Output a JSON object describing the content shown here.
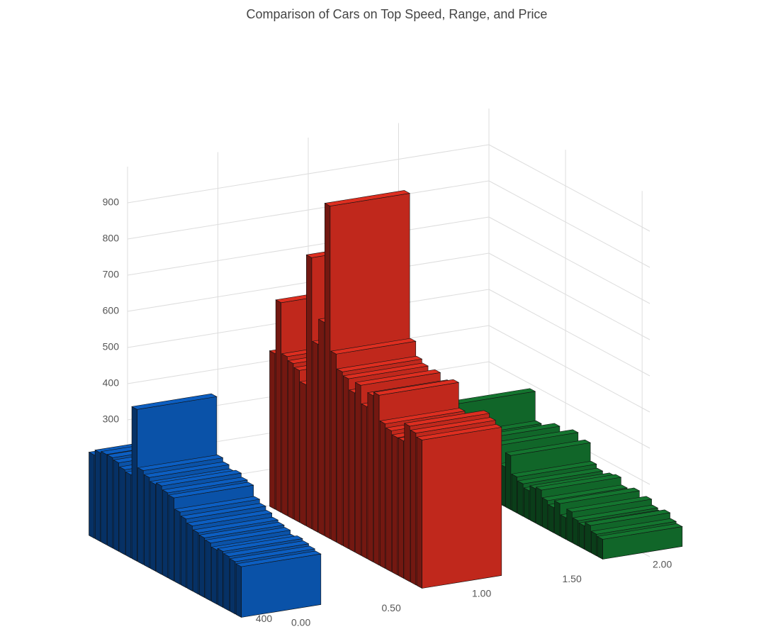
{
  "chart_data": {
    "type": "bar3d",
    "title": "Comparison of Cars on Top Speed, Range, and Price",
    "x": [
      10,
      26,
      42,
      58,
      74,
      90,
      106,
      122,
      138,
      154,
      170,
      186,
      202,
      218,
      234,
      250,
      266,
      282,
      298,
      314,
      330,
      346,
      362,
      378,
      394
    ],
    "series": [
      {
        "color": "#0a52a8",
        "values": [
          230,
          245,
          250,
          250,
          245,
          235,
          230,
          420,
          260,
          250,
          240,
          245,
          235,
          230,
          200,
          190,
          180,
          170,
          165,
          160,
          150,
          155,
          150,
          145,
          140
        ]
      },
      {
        "color": "#c0281c",
        "values": [
          430,
          580,
          440,
          430,
          420,
          390,
          750,
          520,
          590,
          920,
          520,
          480,
          470,
          440,
          470,
          420,
          460,
          470,
          400,
          390,
          380,
          380,
          430,
          420,
          410
        ]
      },
      {
        "color": "#116629",
        "values": [
          210,
          130,
          120,
          110,
          150,
          120,
          110,
          160,
          110,
          150,
          100,
          90,
          80,
          95,
          100,
          80,
          70,
          90,
          60,
          85,
          70,
          65,
          75,
          60,
          55
        ]
      }
    ],
    "xlim": [
      0,
      420
    ],
    "xticks": [
      0,
      200,
      400
    ],
    "ylim": [
      0,
      2
    ],
    "yticks": [
      {
        "value": 0,
        "label": "0.00"
      },
      {
        "value": 0.5,
        "label": "0.50"
      },
      {
        "value": 1,
        "label": "1.00"
      },
      {
        "value": 1.5,
        "label": "1.50"
      },
      {
        "value": 2,
        "label": "2.00"
      }
    ],
    "zlim": [
      0,
      1000
    ],
    "zticks": [
      0,
      100,
      200,
      300,
      400,
      500,
      600,
      700,
      800,
      900
    ],
    "grid": true
  }
}
